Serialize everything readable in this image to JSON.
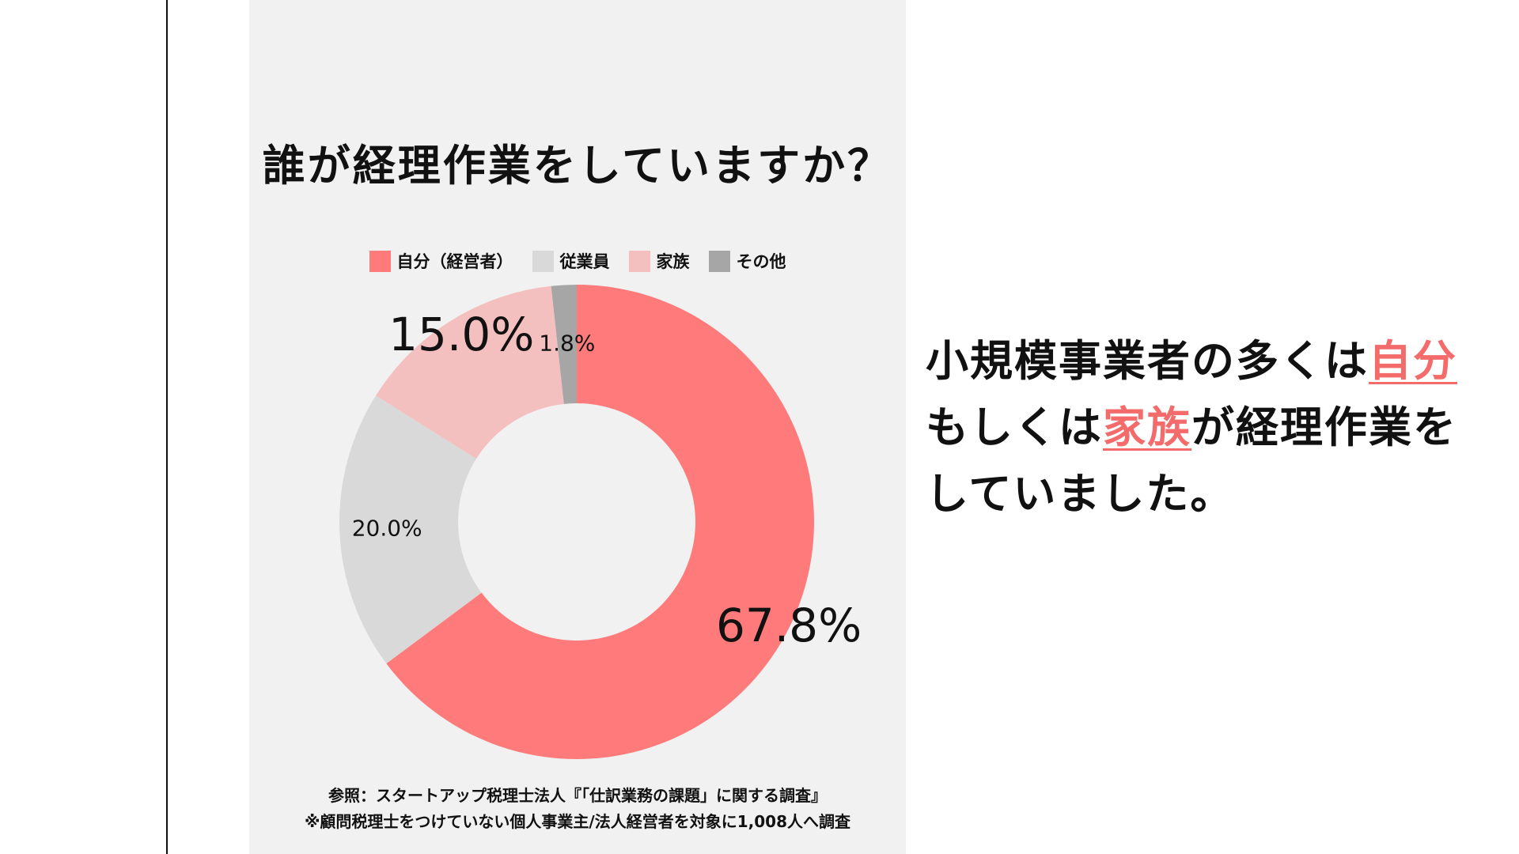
{
  "colors": {
    "self": "#ff7a7a",
    "employee": "#d9d9d9",
    "family": "#f4bfbf",
    "other": "#a6a6a6",
    "highlight": "#f36b6b",
    "panel_bg": "#f1f1f1"
  },
  "chart_data": {
    "type": "pie",
    "title": "誰が経理作業をしていますか？",
    "donut": true,
    "legend_position": "top",
    "slices": [
      {
        "name": "自分（経営者）",
        "value": 67.8,
        "label": "67.8%",
        "color": "#ff7a7a"
      },
      {
        "name": "従業員",
        "value": 20.0,
        "label": "20.0%",
        "color": "#d9d9d9"
      },
      {
        "name": "家族",
        "value": 15.0,
        "label": "15.0%",
        "color": "#f4bfbf"
      },
      {
        "name": "その他",
        "value": 1.8,
        "label": "1.8%",
        "color": "#a6a6a6"
      }
    ]
  },
  "source": {
    "line1": "参照：スタートアップ税理士法人『「仕訳業務の課題」に関する調査』",
    "line2": "※顧問税理士をつけていない個人事業主/法人経営者を対象に1,008人へ調査"
  },
  "message": {
    "part1": "小規模事業者の多くは",
    "highlight1": "自分",
    "part2": "もしくは",
    "highlight2": "家族",
    "part3": "が経理作業を",
    "part4": "していました。"
  }
}
